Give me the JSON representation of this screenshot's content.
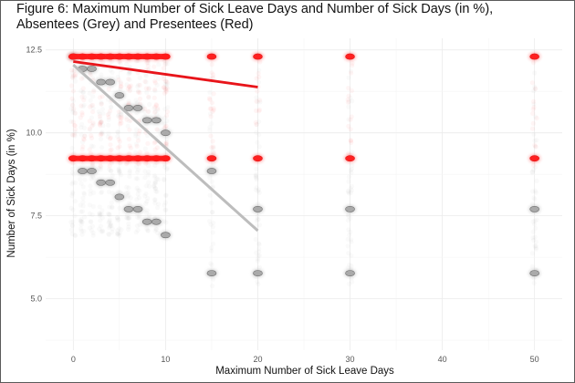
{
  "chart_data": {
    "type": "scatter",
    "title": "Figure 6: Maximum Number of Sick Leave Days and Number of Sick Days (in %),",
    "subtitle": "Absentees (Grey) and Presentees (Red)",
    "xlabel": "Maximum Number of Sick Leave Days",
    "ylabel": "Number of Sick Days (in %)",
    "xlim": [
      -3,
      53
    ],
    "ylim": [
      3.45,
      12.85
    ],
    "x_ticks": [
      0,
      10,
      20,
      30,
      40,
      50
    ],
    "y_ticks": [
      5.0,
      7.5,
      10.0,
      12.5
    ],
    "y_tick_labels": [
      "5.0",
      "7.5",
      "10.0",
      "12.5"
    ],
    "grid": true,
    "colors": {
      "absentees": "#9a9a9a",
      "presentees": "#ff1a1a",
      "absentee_fit": "#bdbdbd",
      "presentee_fit": "#e8141a"
    },
    "series": [
      {
        "group": "absentees",
        "points": [
          {
            "x": 0,
            "y": 12.3
          },
          {
            "x": 1,
            "y": 11.93
          },
          {
            "x": 2,
            "y": 11.93
          },
          {
            "x": 3,
            "y": 11.53
          },
          {
            "x": 4,
            "y": 11.53
          },
          {
            "x": 5,
            "y": 11.13
          },
          {
            "x": 6,
            "y": 10.75
          },
          {
            "x": 7,
            "y": 10.75
          },
          {
            "x": 8,
            "y": 10.38
          },
          {
            "x": 9,
            "y": 10.38
          },
          {
            "x": 10,
            "y": 10.0
          },
          {
            "x": 1,
            "y": 8.85
          },
          {
            "x": 2,
            "y": 8.85
          },
          {
            "x": 3,
            "y": 8.5
          },
          {
            "x": 4,
            "y": 8.5
          },
          {
            "x": 5,
            "y": 8.07
          },
          {
            "x": 6,
            "y": 7.7
          },
          {
            "x": 7,
            "y": 7.7
          },
          {
            "x": 8,
            "y": 7.32
          },
          {
            "x": 9,
            "y": 7.32
          },
          {
            "x": 10,
            "y": 6.92
          },
          {
            "x": 15,
            "y": 8.85
          },
          {
            "x": 15,
            "y": 5.77
          },
          {
            "x": 20,
            "y": 7.7
          },
          {
            "x": 20,
            "y": 5.77
          },
          {
            "x": 30,
            "y": 7.7
          },
          {
            "x": 30,
            "y": 5.77
          },
          {
            "x": 50,
            "y": 7.7
          },
          {
            "x": 50,
            "y": 5.77
          }
        ],
        "trend": {
          "x": [
            0,
            20
          ],
          "y": [
            12.05,
            7.05
          ]
        }
      },
      {
        "group": "presentees",
        "points": [
          {
            "x": 0,
            "y": 12.3
          },
          {
            "x": 1,
            "y": 12.3
          },
          {
            "x": 2,
            "y": 12.3
          },
          {
            "x": 3,
            "y": 12.3
          },
          {
            "x": 4,
            "y": 12.3
          },
          {
            "x": 5,
            "y": 12.3
          },
          {
            "x": 6,
            "y": 12.3
          },
          {
            "x": 7,
            "y": 12.3
          },
          {
            "x": 8,
            "y": 12.3
          },
          {
            "x": 9,
            "y": 12.3
          },
          {
            "x": 10,
            "y": 12.3
          },
          {
            "x": 0,
            "y": 9.23
          },
          {
            "x": 1,
            "y": 9.23
          },
          {
            "x": 2,
            "y": 9.23
          },
          {
            "x": 3,
            "y": 9.23
          },
          {
            "x": 4,
            "y": 9.23
          },
          {
            "x": 5,
            "y": 9.23
          },
          {
            "x": 6,
            "y": 9.23
          },
          {
            "x": 7,
            "y": 9.23
          },
          {
            "x": 8,
            "y": 9.23
          },
          {
            "x": 9,
            "y": 9.23
          },
          {
            "x": 10,
            "y": 9.23
          },
          {
            "x": 15,
            "y": 12.3
          },
          {
            "x": 15,
            "y": 9.23
          },
          {
            "x": 20,
            "y": 12.3
          },
          {
            "x": 20,
            "y": 9.23
          },
          {
            "x": 30,
            "y": 12.3
          },
          {
            "x": 30,
            "y": 9.23
          },
          {
            "x": 50,
            "y": 12.3
          },
          {
            "x": 50,
            "y": 9.23
          }
        ],
        "trend": {
          "x": [
            0,
            20
          ],
          "y": [
            12.15,
            11.38
          ]
        }
      }
    ]
  }
}
